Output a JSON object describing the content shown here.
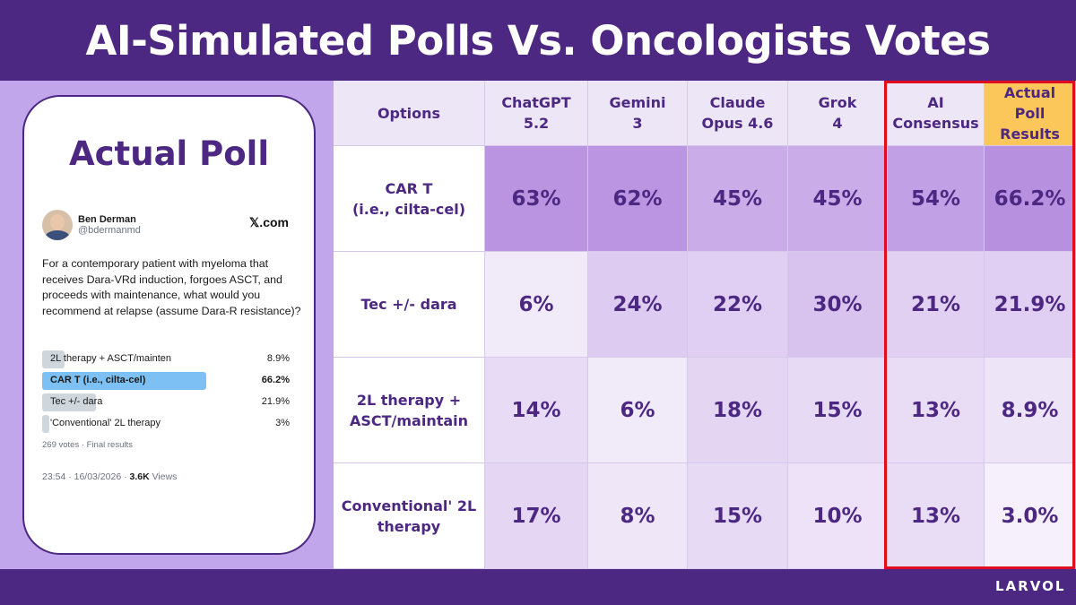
{
  "title": "AI-Simulated Polls Vs. Oncologists Votes",
  "poll_card": {
    "heading": "Actual Poll",
    "author_name": "Ben Derman",
    "author_handle": "@bdermanmd",
    "source": "𝕏.com",
    "question": "For a contemporary patient with myeloma that receives Dara-VRd induction, forgoes ASCT, and proceeds with maintenance, what would you recommend at relapse (assume Dara-R resistance)?",
    "options": [
      {
        "label": "2L therapy + ASCT/mainten",
        "percent": "8.9%",
        "value": 8.9,
        "winner": false
      },
      {
        "label": "CAR T (i.e., cilta-cel)",
        "percent": "66.2%",
        "value": 66.2,
        "winner": true
      },
      {
        "label": "Tec +/- dara",
        "percent": "21.9%",
        "value": 21.9,
        "winner": false
      },
      {
        "label": "'Conventional' 2L therapy",
        "percent": "3%",
        "value": 3,
        "winner": false
      }
    ],
    "votes_text": "269 votes · Final results",
    "timestamp": "23:54 · 16/03/2026 · ",
    "views_count": "3.6K",
    "views_label": " Views"
  },
  "table": {
    "headers": [
      "Options",
      "ChatGPT\n5.2",
      "Gemini\n3",
      "Claude\nOpus 4.6",
      "Grok\n4",
      "AI\nConsensus",
      "Actual Poll\nResults"
    ],
    "rows": [
      {
        "label": "CAR T\n(i.e., cilta-cel)",
        "values": [
          "63%",
          "62%",
          "45%",
          "45%",
          "54%",
          "66.2%"
        ],
        "nums": [
          63,
          62,
          45,
          45,
          54,
          66.2
        ]
      },
      {
        "label": "Tec +/- dara",
        "values": [
          "6%",
          "24%",
          "22%",
          "30%",
          "21%",
          "21.9%"
        ],
        "nums": [
          6,
          24,
          22,
          30,
          21,
          21.9
        ]
      },
      {
        "label": "2L therapy +\nASCT/maintain",
        "values": [
          "14%",
          "6%",
          "18%",
          "15%",
          "13%",
          "8.9%"
        ],
        "nums": [
          14,
          6,
          18,
          15,
          13,
          8.9
        ]
      },
      {
        "label": "Conventional' 2L\ntherapy",
        "values": [
          "17%",
          "8%",
          "15%",
          "10%",
          "13%",
          "3.0%"
        ],
        "nums": [
          17,
          8,
          15,
          10,
          13,
          3.0
        ]
      }
    ]
  },
  "colors": {
    "brand_purple": "#4c2882",
    "heat_low": "#faf7fd",
    "heat_high": "#b890e0",
    "highlight_border": "#e00d1f",
    "actual_header": "#fbc65a"
  },
  "footer_brand": "LARVOL"
}
